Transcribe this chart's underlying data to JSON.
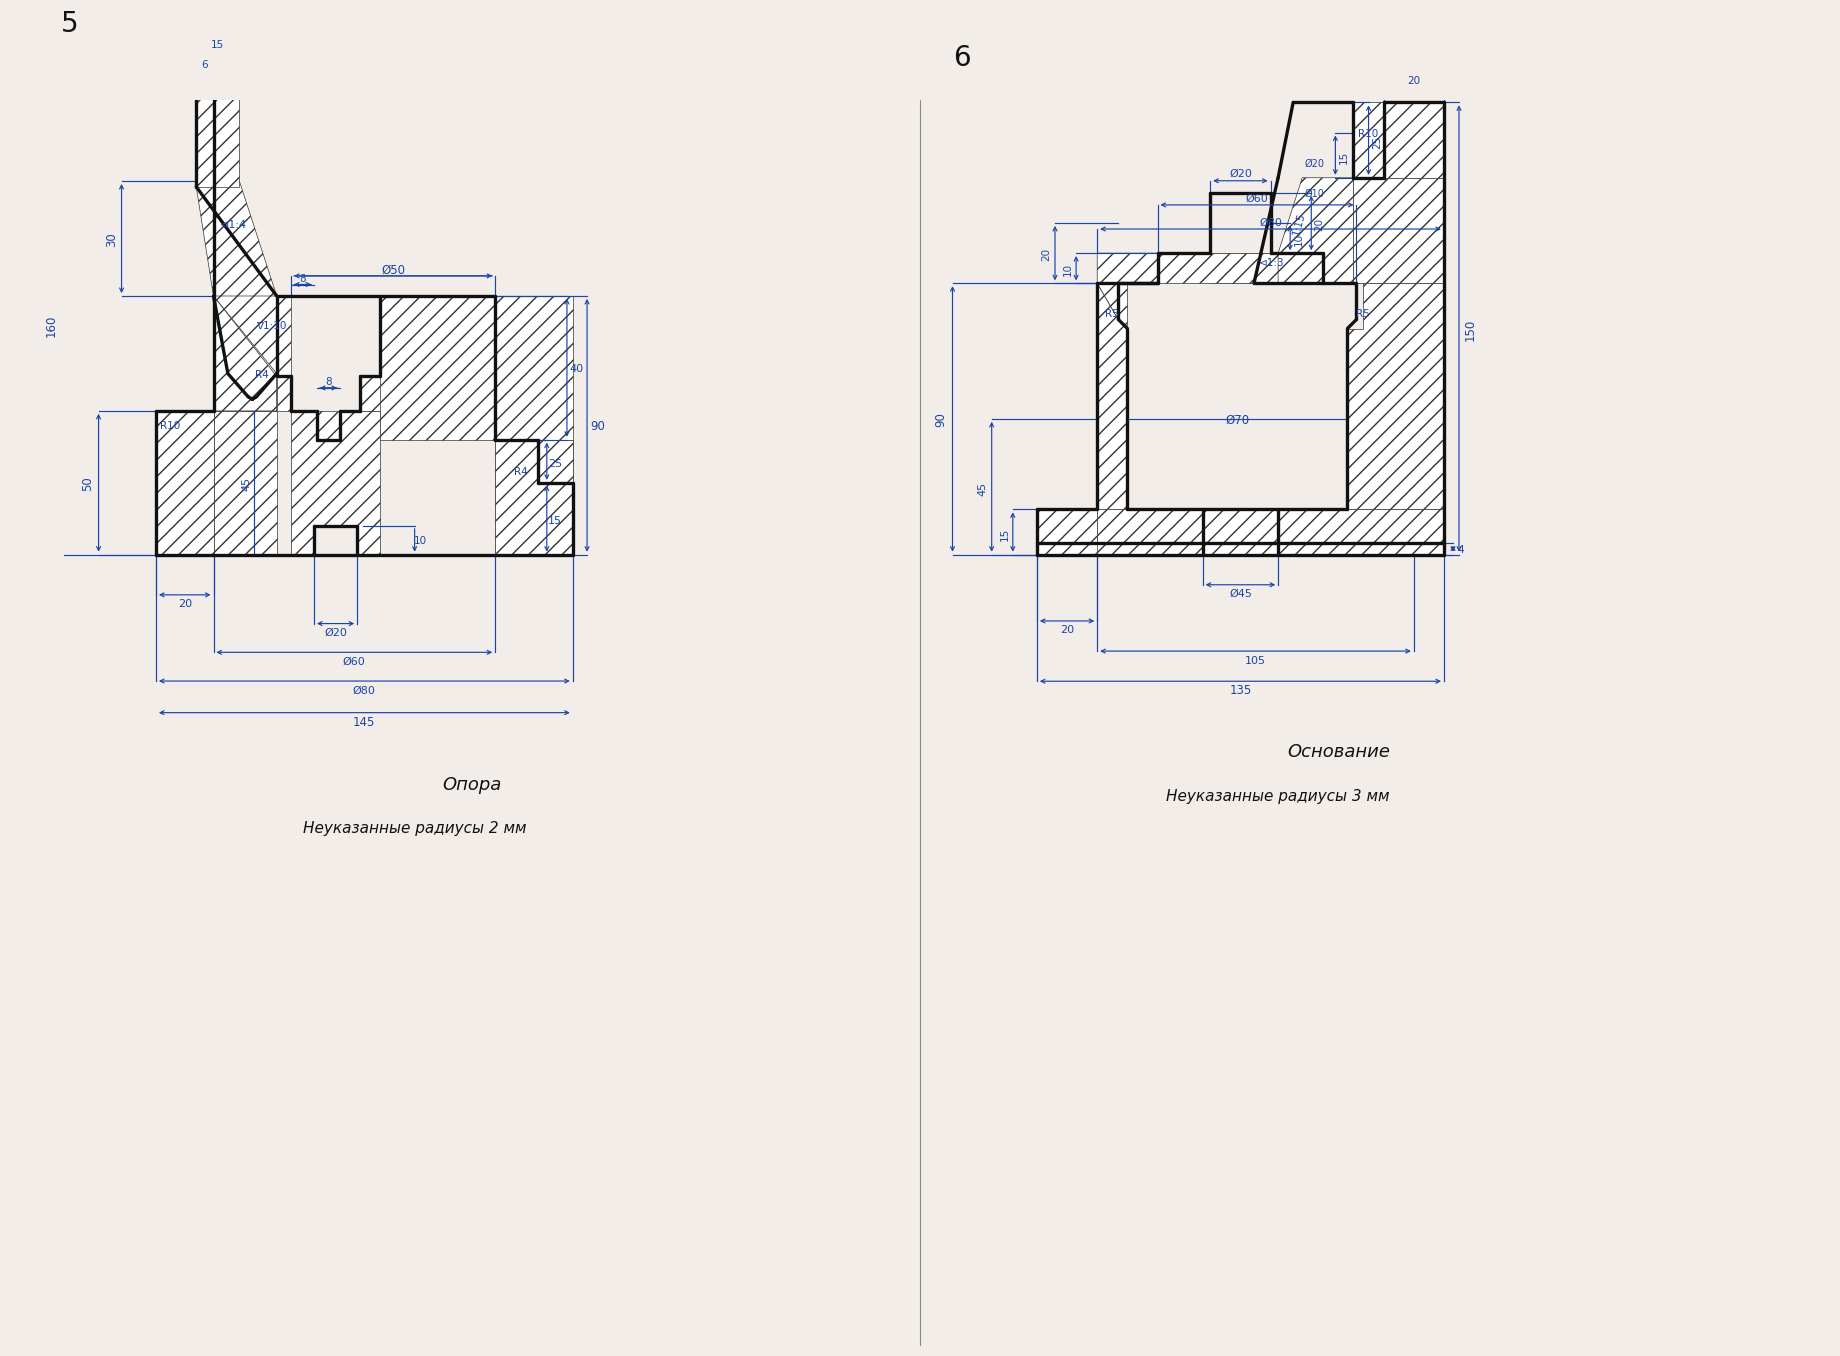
{
  "bg": "#f2ede8",
  "lc": "#111111",
  "dc": "#1a44aa",
  "lw_main": 2.4,
  "lw_dim": 0.85,
  "fig5_label": "5",
  "fig6_label": "6",
  "cap5_1": "Опора",
  "cap5_2": "Неуказанные радиусы 2 мм",
  "cap6_1": "Основание",
  "cap6_2": "Неуказанные радиусы 3 мм"
}
